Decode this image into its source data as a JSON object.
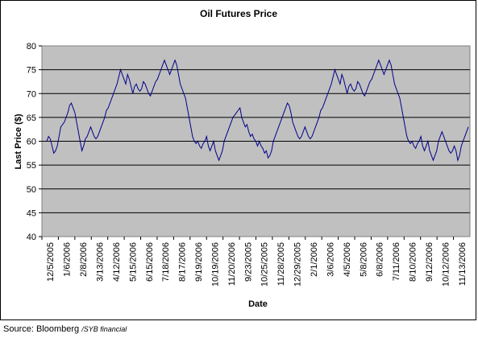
{
  "chart_data": {
    "type": "line",
    "title": "Oil Futures Price",
    "xlabel": "Date",
    "ylabel": "Last Price ($)",
    "ylim": [
      40,
      80
    ],
    "yticks": [
      40,
      45,
      50,
      55,
      60,
      65,
      70,
      75,
      80
    ],
    "xtick_labels": [
      "12/5/2005",
      "1/6/2006",
      "2/8/2006",
      "3/13/2006",
      "4/12/2006",
      "5/15/2006",
      "6/15/2006",
      "7/18/2006",
      "8/17/2006",
      "9/19/2006",
      "10/19/2006",
      "11/20/2006",
      "9/23/2005",
      "10/25/2005",
      "11/28/2005",
      "12/29/2005",
      "2/1/2006",
      "3/6/2006",
      "4/5/2006",
      "5/8/2006",
      "6/8/2006",
      "7/11/2006",
      "8/10/2006",
      "9/12/2006",
      "10/12/2006",
      "11/13/2006"
    ],
    "grid": true,
    "legend": "none",
    "series": [
      {
        "color": "#00008b",
        "values": [
          60,
          61,
          60.5,
          59,
          57.5,
          58,
          59,
          61,
          63,
          63.5,
          64,
          65,
          66,
          67.5,
          68,
          67,
          66,
          64,
          62,
          60,
          58,
          59,
          60.5,
          61,
          62,
          63,
          62,
          61,
          60.5,
          61,
          62,
          63,
          64,
          65,
          66.5,
          67,
          68,
          69,
          70,
          71,
          72,
          73.5,
          75,
          74,
          73,
          72,
          74,
          73,
          71.5,
          70,
          71.5,
          72,
          71,
          70.5,
          71,
          72.5,
          72,
          71,
          70,
          69.5,
          70.5,
          71.5,
          72.5,
          73,
          74,
          75,
          76,
          77,
          76,
          75,
          74,
          75,
          76,
          77,
          76,
          74,
          72,
          71,
          70,
          69,
          67,
          65,
          63,
          61,
          60,
          59.5,
          60,
          59,
          58.5,
          59.5,
          60,
          61,
          59,
          58,
          59,
          60,
          58,
          57,
          56,
          57,
          58,
          60,
          61,
          62,
          63,
          64,
          65,
          65.5,
          66,
          66.5,
          67,
          65,
          64,
          63,
          63.5,
          62,
          61,
          61.5,
          60.5,
          60,
          59,
          60,
          59,
          58.5,
          57.5,
          58,
          56.5,
          57,
          58,
          60,
          61,
          62,
          63,
          64,
          65,
          66,
          67,
          68,
          67.5,
          66,
          64,
          63,
          62,
          61,
          60.5,
          61,
          62,
          63,
          62,
          61,
          60.5,
          61,
          62,
          63,
          64,
          65,
          66.5,
          67,
          68,
          69,
          70,
          71,
          72,
          73.5,
          75,
          74,
          73,
          72,
          74,
          73,
          71.5,
          70,
          71.5,
          72,
          71,
          70.5,
          71,
          72.5,
          72,
          71,
          70,
          69.5,
          70.5,
          71.5,
          72.5,
          73,
          74,
          75,
          76,
          77,
          76,
          75,
          74,
          75,
          76,
          77,
          76,
          74,
          72,
          71,
          70,
          69,
          67,
          65,
          63,
          61,
          60,
          59.5,
          60,
          59,
          58.5,
          59.5,
          60,
          61,
          59,
          58,
          59,
          60,
          58,
          57,
          56,
          57,
          58,
          60,
          61,
          62,
          61,
          60,
          59,
          58,
          57.5,
          58,
          59,
          58,
          56,
          57,
          59,
          60,
          61,
          62,
          63
        ]
      }
    ]
  },
  "footer": {
    "source_prefix": "Source: Bloomberg",
    "source_suffix": "/SYB financial"
  }
}
